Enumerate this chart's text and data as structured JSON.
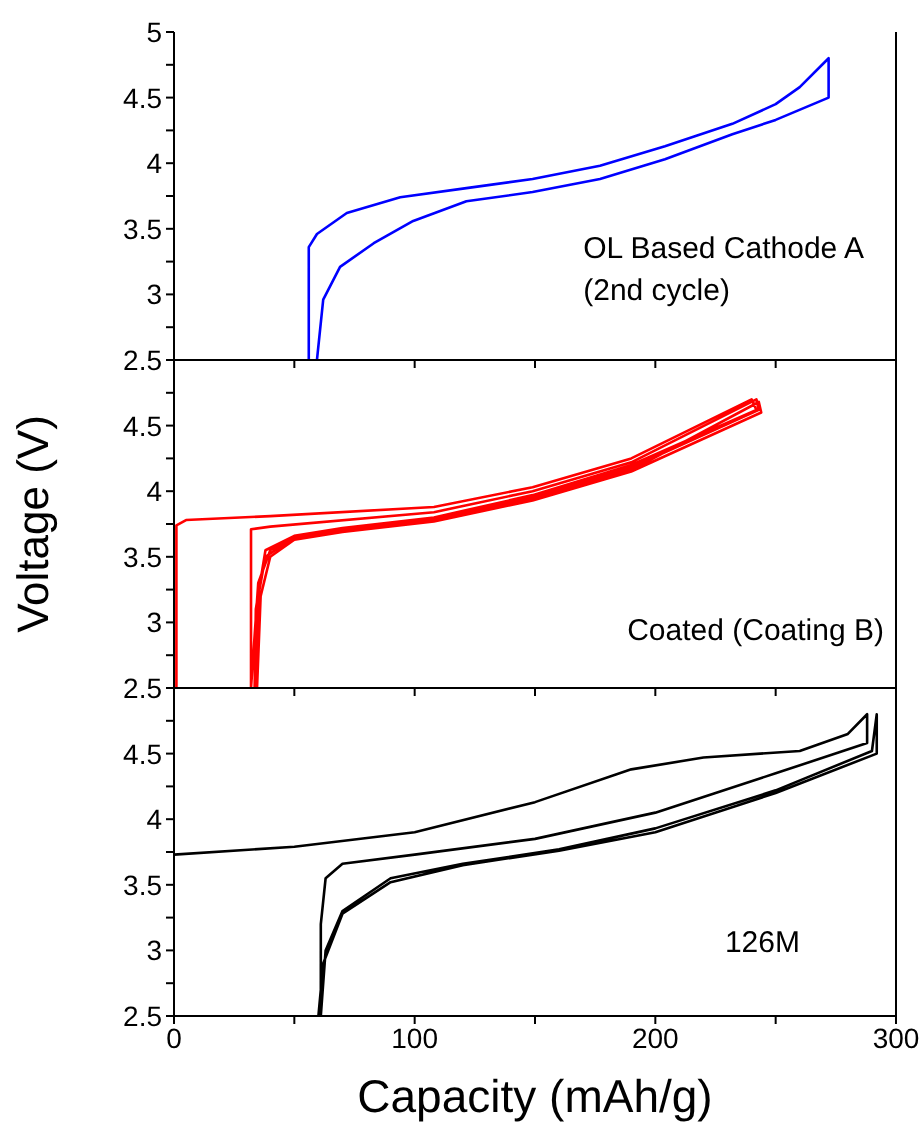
{
  "chart_data": [
    {
      "type": "line",
      "xlim": [
        0,
        300
      ],
      "xticks": [
        0,
        {
          "value": 50,
          "label": null
        },
        100,
        {
          "value": 150,
          "label": null
        },
        200,
        {
          "value": 250,
          "label": null
        },
        300
      ],
      "ylim": [
        2.5,
        5
      ],
      "yticks": [
        2.5,
        {
          "value": 2.75,
          "label": null
        },
        3,
        {
          "value": 3.25,
          "label": null
        },
        3.5,
        {
          "value": 3.75,
          "label": null
        },
        4,
        {
          "value": 4.25,
          "label": null
        },
        4.5,
        {
          "value": 4.75,
          "label": null
        },
        5
      ],
      "tick_labels": "y",
      "annotations": [
        "OL Based Cathode A\n(2nd cycle)"
      ],
      "series": [
        {
          "color": "#0000ff",
          "x": [
            56,
            56,
            59.4,
            71.8,
            94,
            121.5,
            149,
            177,
            204,
            232,
            250,
            260,
            272,
            272,
            250,
            232,
            204,
            177,
            149,
            121.5,
            99.4,
            83,
            69,
            62,
            59.4
          ],
          "values": [
            2.5,
            3.36,
            3.46,
            3.62,
            3.74,
            3.81,
            3.88,
            3.98,
            4.13,
            4.3,
            4.45,
            4.58,
            4.8,
            4.5,
            4.33,
            4.22,
            4.03,
            3.88,
            3.78,
            3.71,
            3.56,
            3.39,
            3.21,
            2.96,
            2.5
          ]
        }
      ]
    },
    {
      "type": "line",
      "xlim": [
        0,
        300
      ],
      "xticks": [
        0,
        {
          "value": 50,
          "label": null
        },
        100,
        {
          "value": 150,
          "label": null
        },
        200,
        {
          "value": 250,
          "label": null
        },
        300
      ],
      "ylim": [
        2.5,
        5
      ],
      "yticks": [
        2.5,
        {
          "value": 2.75,
          "label": null
        },
        3,
        {
          "value": 3.25,
          "label": null
        },
        3.5,
        {
          "value": 3.75,
          "label": null
        },
        4,
        {
          "value": 4.25,
          "label": null
        },
        4.5,
        {
          "value": 4.75,
          "label": null
        },
        {
          "value": 5,
          "label": null
        }
      ],
      "tick_labels": "y",
      "ylabel": "Voltage (V)",
      "annotations": [
        "Coated (Coating B)"
      ],
      "series": [
        {
          "color": "#ff0000",
          "x": [
            1,
            1,
            5,
            40,
            108,
            149,
            190,
            240,
            242,
            190,
            149,
            108,
            70,
            50,
            40,
            35,
            32,
            32,
            40,
            108,
            149,
            190,
            242,
            243,
            190,
            149,
            108,
            70,
            50,
            38,
            35,
            33.5,
            34,
            38,
            50,
            70,
            108,
            149,
            190,
            243,
            244,
            190,
            149,
            108,
            70,
            50,
            40,
            36,
            34.5
          ],
          "values": [
            2.5,
            3.74,
            3.78,
            3.81,
            3.88,
            4.03,
            4.25,
            4.7,
            4.62,
            4.2,
            3.97,
            3.8,
            3.72,
            3.66,
            3.55,
            3.3,
            2.5,
            3.71,
            3.73,
            3.84,
            4.0,
            4.22,
            4.7,
            4.62,
            4.18,
            3.95,
            3.79,
            3.7,
            3.65,
            3.5,
            3.2,
            2.5,
            3.1,
            3.55,
            3.66,
            3.71,
            3.78,
            3.94,
            4.16,
            4.68,
            4.6,
            4.15,
            3.93,
            3.77,
            3.69,
            3.63,
            3.5,
            3.2,
            2.5
          ]
        }
      ]
    },
    {
      "type": "line",
      "xlim": [
        0,
        300
      ],
      "xticks": [
        0,
        {
          "value": 50,
          "label": null
        },
        100,
        {
          "value": 150,
          "label": null
        },
        200,
        {
          "value": 250,
          "label": null
        },
        300
      ],
      "ylim": [
        2.5,
        5
      ],
      "yticks": [
        2.5,
        {
          "value": 2.75,
          "label": null
        },
        3,
        {
          "value": 3.25,
          "label": null
        },
        3.5,
        {
          "value": 3.75,
          "label": null
        },
        4,
        {
          "value": 4.25,
          "label": null
        },
        4.5,
        {
          "value": 4.75,
          "label": null
        },
        {
          "value": 5,
          "label": null
        }
      ],
      "xlabel": "Capacity (mAh/g)",
      "annotations": [
        "126M"
      ],
      "series": [
        {
          "color": "#000000",
          "x": [
            0,
            50,
            100,
            150,
            190,
            220,
            260,
            280,
            288,
            288,
            250,
            200,
            150,
            100,
            70,
            63,
            61,
            61,
            63,
            70,
            90,
            120,
            160,
            200,
            250,
            290,
            292,
            292,
            250,
            200,
            160,
            120,
            90,
            70,
            62,
            60
          ],
          "values": [
            3.73,
            3.79,
            3.9,
            4.13,
            4.38,
            4.47,
            4.52,
            4.65,
            4.8,
            4.58,
            4.35,
            4.05,
            3.85,
            3.73,
            3.66,
            3.55,
            3.2,
            2.5,
            3.0,
            3.3,
            3.55,
            3.66,
            3.77,
            3.93,
            4.22,
            4.52,
            4.8,
            4.5,
            4.2,
            3.9,
            3.76,
            3.65,
            3.52,
            3.28,
            2.9,
            2.5
          ]
        }
      ]
    }
  ]
}
